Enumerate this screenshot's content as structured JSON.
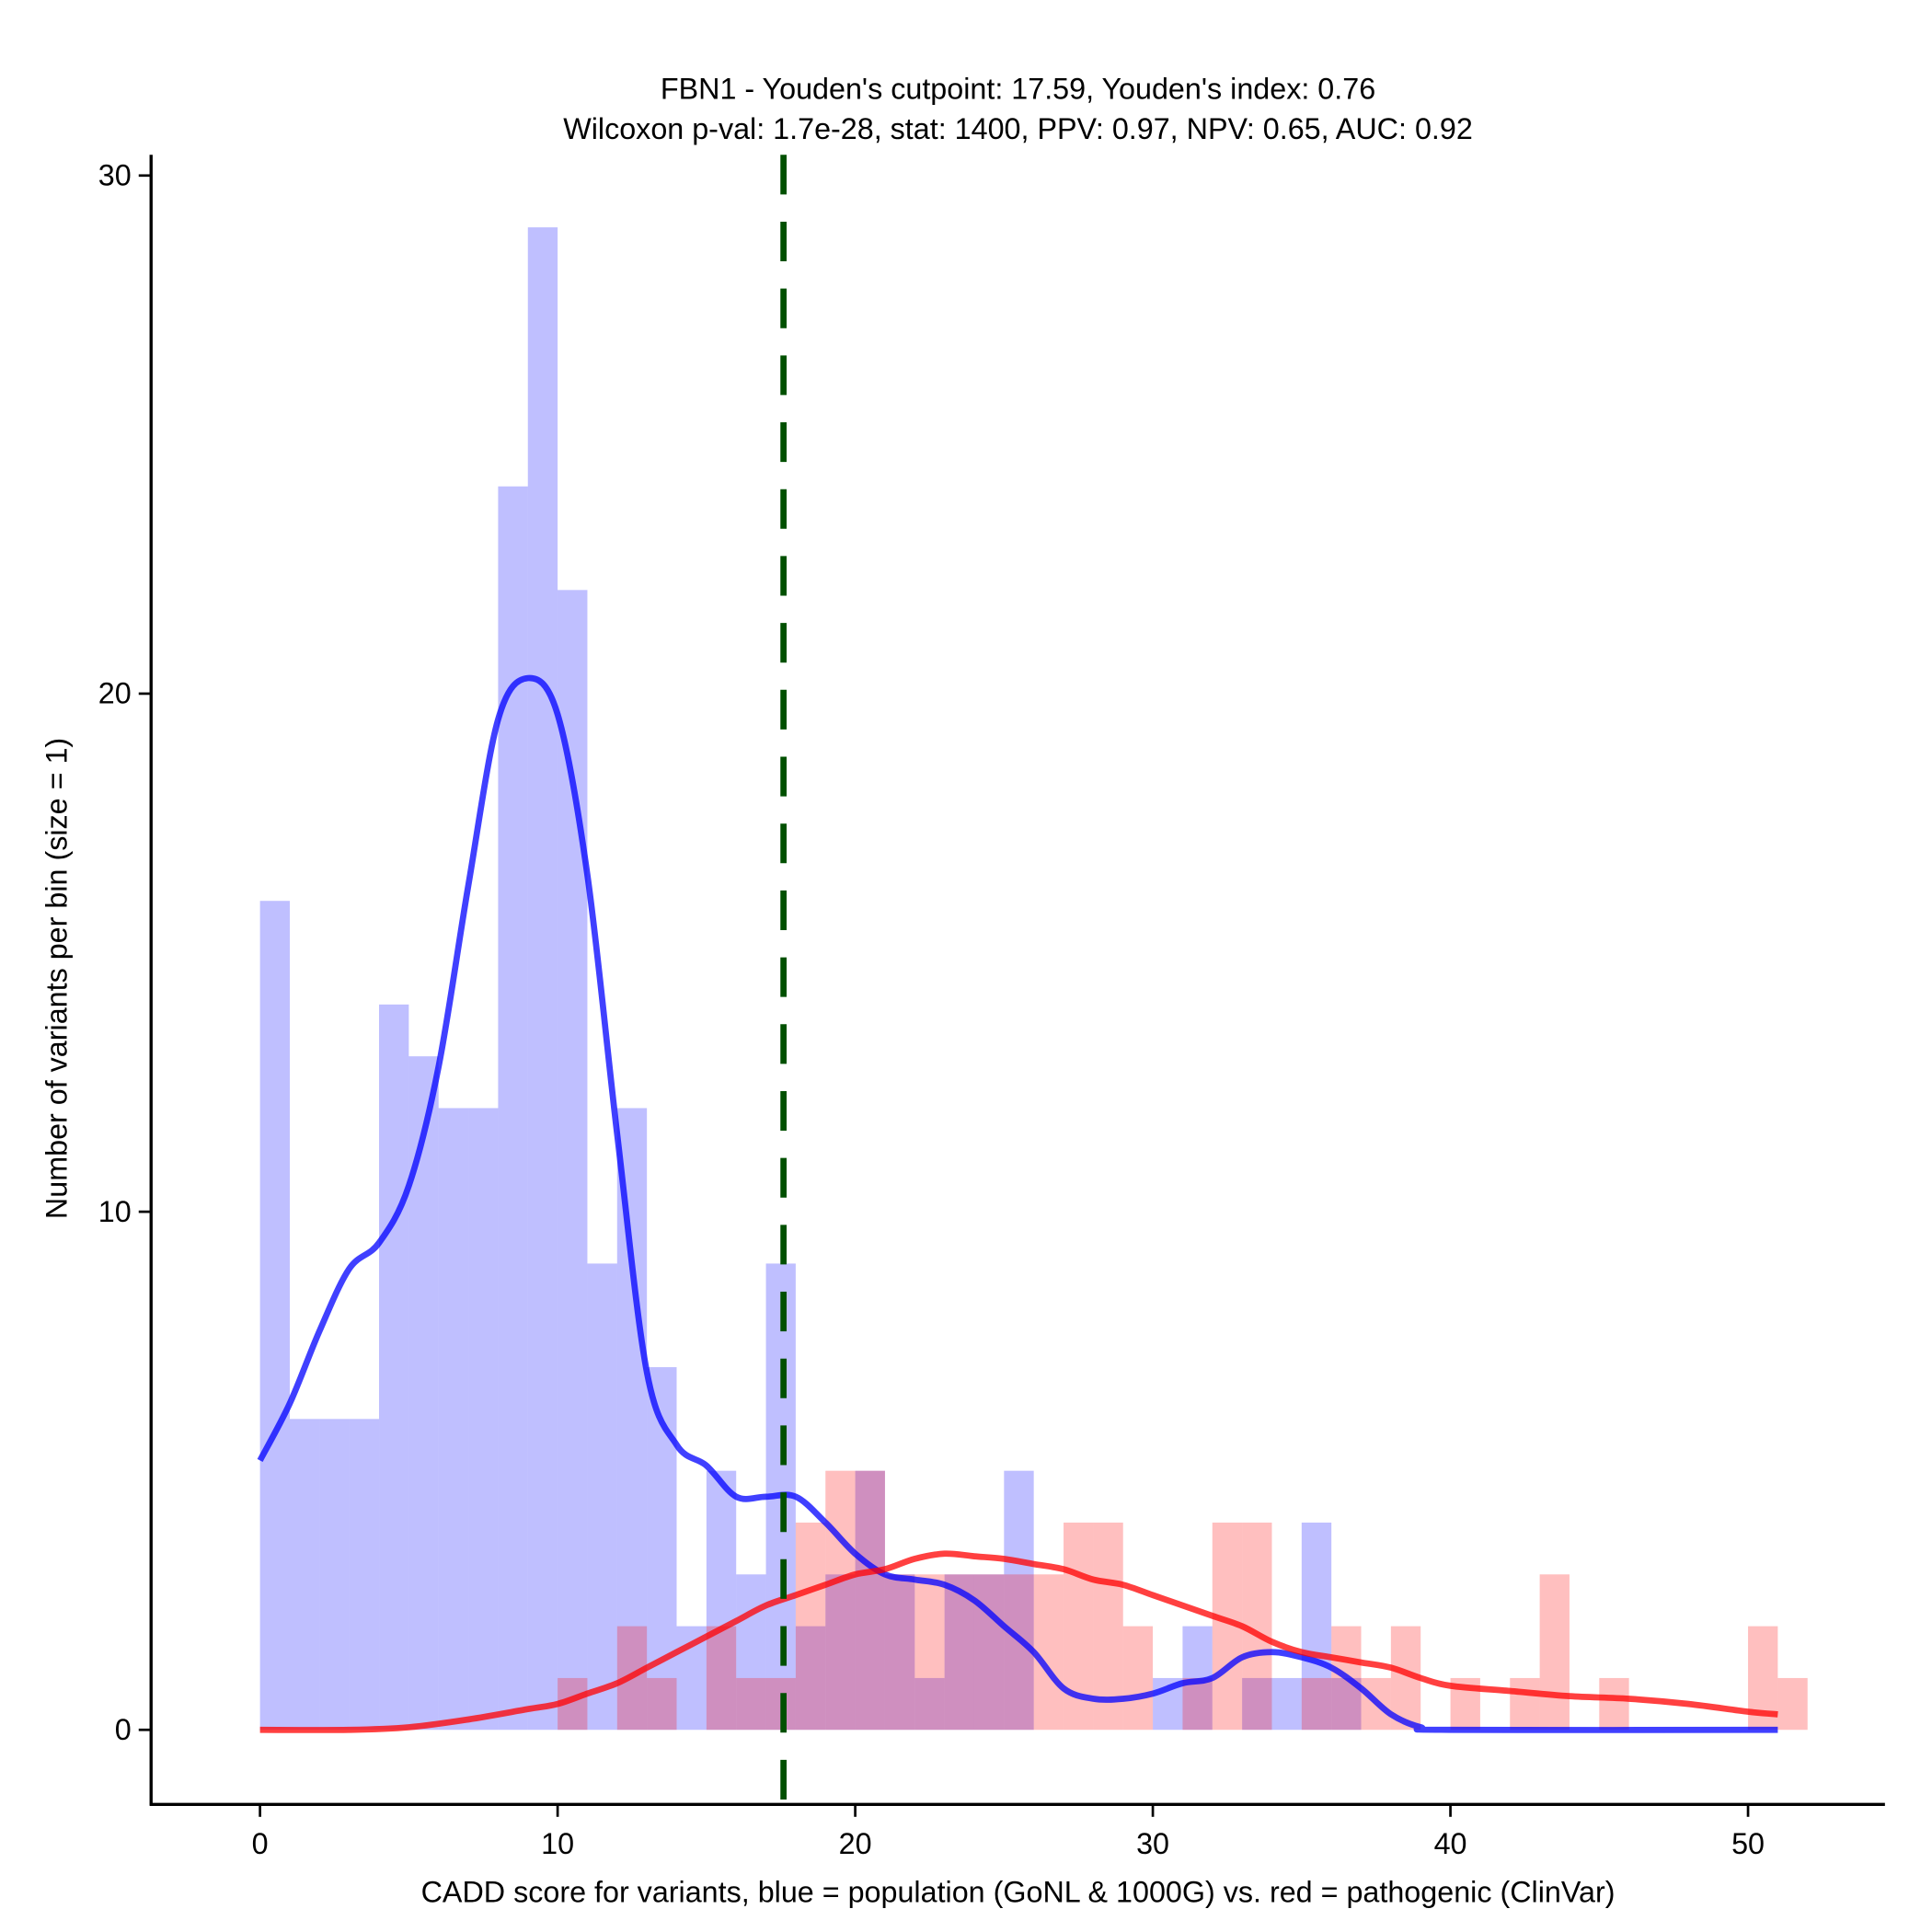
{
  "chart_data": {
    "type": "bar",
    "title_line1": "FBN1 - Youden's cutpoint: 17.59, Youden's index: 0.76",
    "title_line2": "Wilcoxon p-val: 1.7e-28, stat: 1400, PPV: 0.97, NPV: 0.65, AUC: 0.92",
    "xlabel": "CADD score for variants, blue = population (GoNL & 1000G) vs. red = pathogenic (ClinVar)",
    "ylabel": "Number of variants per bin (size = 1)",
    "xlim": [
      -3.66,
      54.6
    ],
    "ylim": [
      -1.44,
      30.4
    ],
    "xticks": [
      0,
      10,
      20,
      30,
      40,
      50
    ],
    "xtick_labels": [
      "0",
      "10",
      "20",
      "30",
      "40",
      "50"
    ],
    "yticks": [
      0,
      10,
      20,
      30
    ],
    "ytick_labels": [
      "0",
      "10",
      "20",
      "30"
    ],
    "bin_width": 1,
    "cutpoint": 17.59,
    "colors": {
      "population": "#0000ff",
      "pathogenic": "#ff0000",
      "cutpoint": "#005000"
    },
    "series": [
      {
        "name": "population",
        "bin_start": 0,
        "values": [
          16,
          6,
          6,
          6,
          14,
          13,
          12,
          12,
          24,
          29,
          22,
          9,
          12,
          7,
          2,
          5,
          3,
          9,
          2,
          3,
          5,
          3,
          1,
          3,
          3,
          5,
          0,
          0,
          0,
          0,
          1,
          2,
          0,
          1,
          1,
          4,
          1,
          0,
          0,
          0,
          0,
          0,
          0,
          0,
          0,
          0,
          0,
          0,
          0,
          0,
          0,
          0
        ],
        "density_x": [
          0,
          1,
          2,
          3,
          4,
          5,
          6,
          7,
          8,
          9,
          10,
          11,
          12,
          13,
          14,
          15,
          16,
          17,
          18,
          19,
          20,
          21,
          22,
          23,
          24,
          25,
          26,
          27,
          28,
          29,
          30,
          31,
          32,
          33,
          34,
          35,
          36,
          37,
          38,
          39,
          40,
          51
        ],
        "density_y": [
          5.2,
          6.3,
          7.7,
          8.9,
          9.4,
          10.5,
          12.8,
          16.3,
          19.5,
          20.3,
          19.6,
          16.5,
          11.5,
          6.9,
          5.5,
          5.1,
          4.5,
          4.5,
          4.5,
          4.0,
          3.4,
          3.0,
          2.9,
          2.8,
          2.5,
          2.0,
          1.5,
          0.8,
          0.6,
          0.6,
          0.7,
          0.9,
          1.0,
          1.4,
          1.5,
          1.4,
          1.2,
          0.8,
          0.3,
          0.05,
          0,
          0
        ]
      },
      {
        "name": "pathogenic",
        "bin_start": 0,
        "values": [
          0,
          0,
          0,
          0,
          0,
          0,
          0,
          0,
          0,
          0,
          1,
          0,
          2,
          1,
          0,
          2,
          1,
          1,
          4,
          5,
          5,
          3,
          3,
          3,
          3,
          3,
          3,
          4,
          4,
          2,
          0,
          1,
          4,
          4,
          0,
          1,
          2,
          1,
          2,
          0,
          1,
          0,
          1,
          3,
          0,
          1,
          0,
          0,
          0,
          0,
          2,
          1
        ],
        "density_x": [
          0,
          3,
          5,
          7,
          9,
          10,
          11,
          12,
          13,
          14,
          15,
          16,
          17,
          18,
          19,
          20,
          21,
          22,
          23,
          24,
          25,
          26,
          27,
          28,
          29,
          30,
          31,
          32,
          33,
          34,
          35,
          36,
          37,
          38,
          39,
          40,
          42,
          44,
          46,
          48,
          50,
          51
        ],
        "density_y": [
          0,
          0,
          0.05,
          0.2,
          0.4,
          0.5,
          0.7,
          0.9,
          1.2,
          1.5,
          1.8,
          2.1,
          2.4,
          2.6,
          2.8,
          3.0,
          3.1,
          3.3,
          3.4,
          3.35,
          3.3,
          3.2,
          3.1,
          2.9,
          2.8,
          2.6,
          2.4,
          2.2,
          2.0,
          1.7,
          1.5,
          1.4,
          1.3,
          1.2,
          1.0,
          0.85,
          0.75,
          0.65,
          0.6,
          0.5,
          0.35,
          0.3
        ]
      }
    ]
  }
}
